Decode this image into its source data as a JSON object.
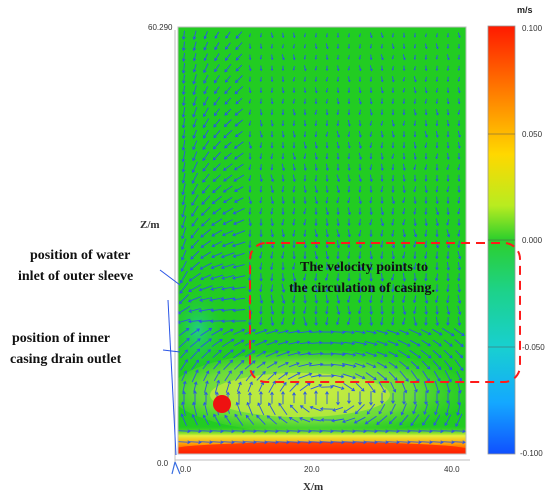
{
  "plot": {
    "z_max_label": "60.290",
    "z_min_label": "0.0",
    "z_axis_label": "Z/m",
    "x_axis_label": "X/m",
    "x_ticks": [
      "0.0",
      "20.0",
      "40.0"
    ]
  },
  "colorbar": {
    "unit": "m/s",
    "ticks": [
      "0.100",
      "0.050",
      "0.000",
      "-0.050",
      "-0.100"
    ],
    "colors": [
      "#ff1a00",
      "#ff8000",
      "#ffd000",
      "#e0f000",
      "#33cc33",
      "#1fd0a0",
      "#12b8ff",
      "#1060ff"
    ]
  },
  "annotations": {
    "water_inlet_line1": "position of water",
    "water_inlet_line2": "inlet of outer sleeve",
    "drain_outlet_line1": "position of inner",
    "drain_outlet_line2": "casing drain outlet",
    "circulation_line1": "The velocity points to",
    "circulation_line2": "the circulation of casing."
  },
  "colors": {
    "field_green": "#22cc22",
    "field_light_green": "#9fe84a",
    "hot_red": "#ff2a00",
    "vector_blue": "#2a55e6",
    "dashed_box": "#ff1a1a",
    "marker": "#ee1111"
  }
}
